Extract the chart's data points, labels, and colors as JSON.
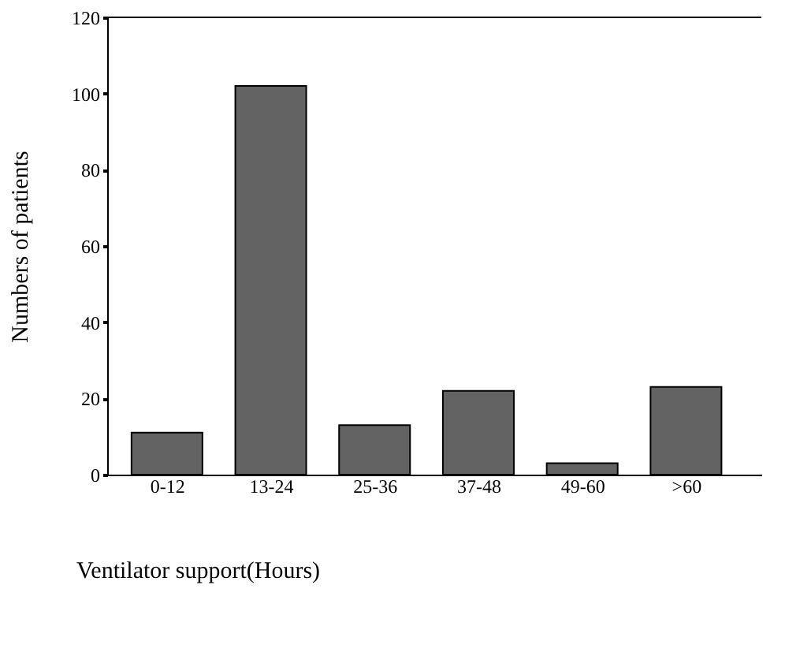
{
  "chart_data": {
    "type": "bar",
    "xlabel": "Ventilator support(Hours)",
    "ylabel": "Numbers of patients",
    "categories": [
      "0-12",
      "13-24",
      "25-36",
      "37-48",
      "49-60",
      ">60"
    ],
    "values": [
      11,
      102,
      13,
      22,
      3,
      23
    ],
    "color": "#636363",
    "ylim": [
      0,
      120
    ],
    "yticks": [
      0,
      20,
      40,
      60,
      80,
      100,
      120
    ],
    "grid": false
  }
}
